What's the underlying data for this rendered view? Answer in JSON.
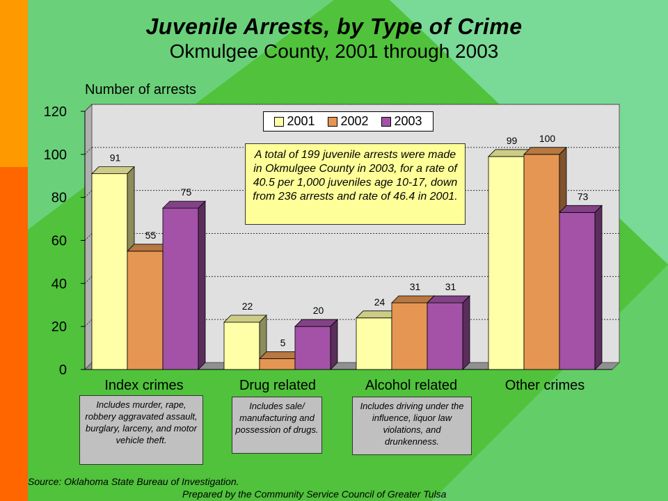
{
  "title": "Juvenile Arrests, by Type of Crime",
  "subtitle": "Okmulgee County, 2001 through 2003",
  "footer": {
    "source": "Source:  Oklahoma State Bureau of Investigation.",
    "prepared": "Prepared by the Community Service Council of Greater Tulsa"
  },
  "callout": "A total of 199 juvenile arrests were made in Okmulgee County in 2003, for a rate of 40.5 per 1,000 juveniles age 10-17, down from 236 arrests and rate of 46.4 in 2001.",
  "notes": [
    "Includes murder, rape, robbery aggravated assault, burglary, larceny, and motor vehicle theft.",
    "Includes sale/ manufacturing and possession of drugs.",
    "Includes driving under the influence, liquor law violations, and drunkenness."
  ],
  "colors": {
    "2001": "#ffffa8",
    "2002": "#e59653",
    "2003": "#a352a8",
    "plot_bg": "#e0e0e0",
    "background": "#50c23c",
    "left_stripe_top": "#ff9900",
    "left_stripe_bottom": "#ff6600"
  },
  "chart_data": {
    "type": "bar",
    "title": "Juvenile Arrests, by Type of Crime",
    "subtitle": "Okmulgee County, 2001 through 2003",
    "ylabel": "Number of arrests",
    "xlabel": "",
    "ylim": [
      0,
      120
    ],
    "yticks": [
      "0",
      "20",
      "40",
      "60",
      "80",
      "100",
      "120"
    ],
    "grid": true,
    "legend_position": "top-center",
    "categories": [
      "Index crimes",
      "Drug related",
      "Alcohol related",
      "Other crimes"
    ],
    "series": [
      {
        "name": "2001",
        "values": [
          91,
          22,
          24,
          99
        ]
      },
      {
        "name": "2002",
        "values": [
          55,
          5,
          31,
          100
        ]
      },
      {
        "name": "2003",
        "values": [
          75,
          20,
          31,
          73
        ]
      }
    ]
  }
}
